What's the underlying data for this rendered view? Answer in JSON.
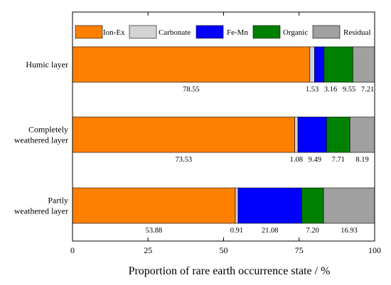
{
  "chart_data": {
    "type": "bar",
    "orientation": "horizontal",
    "stacked": true,
    "title": "",
    "xlabel": "Proportion of rare earth occurrence state / %",
    "ylabel": "",
    "xlim": [
      0,
      100
    ],
    "xticks": [
      0,
      25,
      50,
      75,
      100
    ],
    "grid": false,
    "legend_position": "top",
    "categories": [
      [
        "Humic layer"
      ],
      [
        "Completely",
        "weathered layer"
      ],
      [
        "Partly",
        "weathered layer"
      ]
    ],
    "series": [
      {
        "name": "Ion-Ex",
        "color": "#FF8000",
        "values": [
          78.55,
          73.53,
          53.88
        ]
      },
      {
        "name": "Carbonate",
        "color": "#D3D3D3",
        "values": [
          1.53,
          1.08,
          0.91
        ]
      },
      {
        "name": "Fe-Mn",
        "color": "#0000FF",
        "values": [
          3.16,
          9.49,
          21.08
        ]
      },
      {
        "name": "Organic",
        "color": "#008000",
        "values": [
          9.55,
          7.71,
          7.2
        ]
      },
      {
        "name": "Residual",
        "color": "#A0A0A0",
        "values": [
          7.21,
          8.19,
          16.93
        ]
      }
    ],
    "data_labels": [
      [
        "78.55",
        "1.53",
        "3.16",
        "9.55",
        "7.21"
      ],
      [
        "73.53",
        "1.08",
        "9.49",
        "7.71",
        "8.19"
      ],
      [
        "53.88",
        "0.91",
        "21.08",
        "7.20",
        "16.93"
      ]
    ]
  }
}
